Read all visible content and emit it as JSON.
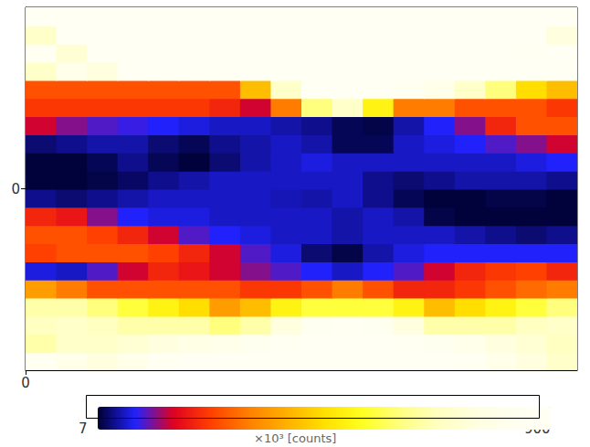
{
  "chart_data": {
    "type": "heatmap",
    "x": [
      5,
      15,
      25,
      35,
      45,
      55,
      65,
      75,
      85,
      95,
      105,
      115,
      125,
      135,
      145,
      155,
      165,
      175
    ],
    "y": [
      -47.5,
      -42.5,
      -37.5,
      -32.5,
      -27.5,
      -22.5,
      -17.5,
      -12.5,
      -7.5,
      -2.5,
      2.5,
      7.5,
      12.5,
      17.5,
      22.5,
      27.5,
      32.5,
      37.5,
      42.5,
      47.5
    ],
    "values": [
      [
        850,
        800,
        750,
        800,
        850,
        880,
        890,
        890,
        890,
        890,
        890,
        890,
        890,
        880,
        860,
        800,
        750,
        700
      ],
      [
        650,
        700,
        700,
        720,
        750,
        780,
        800,
        830,
        860,
        880,
        880,
        880,
        850,
        820,
        800,
        750,
        720,
        680
      ],
      [
        680,
        700,
        680,
        650,
        650,
        650,
        600,
        650,
        750,
        820,
        850,
        820,
        750,
        650,
        650,
        650,
        680,
        700
      ],
      [
        650,
        650,
        600,
        550,
        500,
        450,
        350,
        400,
        500,
        550,
        550,
        550,
        500,
        400,
        450,
        500,
        550,
        600
      ],
      [
        350,
        300,
        250,
        250,
        250,
        250,
        250,
        220,
        220,
        250,
        300,
        250,
        200,
        200,
        220,
        250,
        280,
        300
      ],
      [
        70,
        60,
        100,
        150,
        200,
        180,
        150,
        120,
        100,
        80,
        60,
        80,
        100,
        150,
        200,
        220,
        230,
        200
      ],
      [
        230,
        250,
        250,
        250,
        230,
        200,
        150,
        100,
        70,
        30,
        15,
        50,
        70,
        80,
        80,
        80,
        80,
        80
      ],
      [
        250,
        250,
        230,
        200,
        150,
        100,
        80,
        70,
        60,
        60,
        50,
        60,
        60,
        60,
        50,
        40,
        30,
        40
      ],
      [
        200,
        180,
        120,
        80,
        70,
        70,
        60,
        60,
        60,
        60,
        50,
        60,
        50,
        15,
        10,
        10,
        10,
        10
      ],
      [
        40,
        30,
        40,
        50,
        60,
        60,
        60,
        60,
        55,
        50,
        60,
        40,
        20,
        10,
        10,
        15,
        15,
        10
      ],
      [
        10,
        10,
        15,
        25,
        40,
        50,
        60,
        60,
        60,
        60,
        60,
        40,
        30,
        40,
        50,
        50,
        50,
        40
      ],
      [
        10,
        10,
        20,
        40,
        20,
        10,
        30,
        50,
        60,
        70,
        60,
        60,
        60,
        60,
        60,
        60,
        70,
        80
      ],
      [
        30,
        40,
        50,
        50,
        30,
        20,
        40,
        50,
        60,
        50,
        20,
        20,
        60,
        70,
        80,
        100,
        120,
        150
      ],
      [
        150,
        120,
        100,
        90,
        80,
        70,
        60,
        60,
        50,
        40,
        20,
        15,
        50,
        80,
        120,
        200,
        250,
        250
      ],
      [
        220,
        220,
        220,
        220,
        220,
        220,
        200,
        150,
        300,
        600,
        700,
        500,
        300,
        300,
        250,
        250,
        250,
        220
      ],
      [
        250,
        250,
        250,
        250,
        250,
        250,
        250,
        400,
        700,
        880,
        880,
        880,
        850,
        800,
        700,
        600,
        450,
        400
      ],
      [
        700,
        800,
        750,
        880,
        880,
        880,
        880,
        880,
        880,
        880,
        880,
        880,
        880,
        880,
        880,
        880,
        880,
        880
      ],
      [
        850,
        720,
        880,
        880,
        880,
        880,
        880,
        880,
        880,
        880,
        880,
        880,
        880,
        880,
        880,
        880,
        850,
        880
      ],
      [
        700,
        880,
        880,
        880,
        880,
        880,
        880,
        880,
        880,
        880,
        880,
        880,
        880,
        880,
        880,
        880,
        880,
        750
      ],
      [
        880,
        880,
        880,
        880,
        880,
        880,
        880,
        880,
        880,
        880,
        880,
        880,
        880,
        880,
        880,
        880,
        880,
        880
      ]
    ],
    "xlim": [
      0,
      180
    ],
    "xticks": [
      0
    ],
    "ylim": [
      -50,
      50
    ],
    "yticks": [
      0
    ],
    "grid": false,
    "colorbar": {
      "range": [
        7,
        900
      ],
      "ticks": [
        7,
        900
      ],
      "label": "×10³ [counts]"
    }
  }
}
